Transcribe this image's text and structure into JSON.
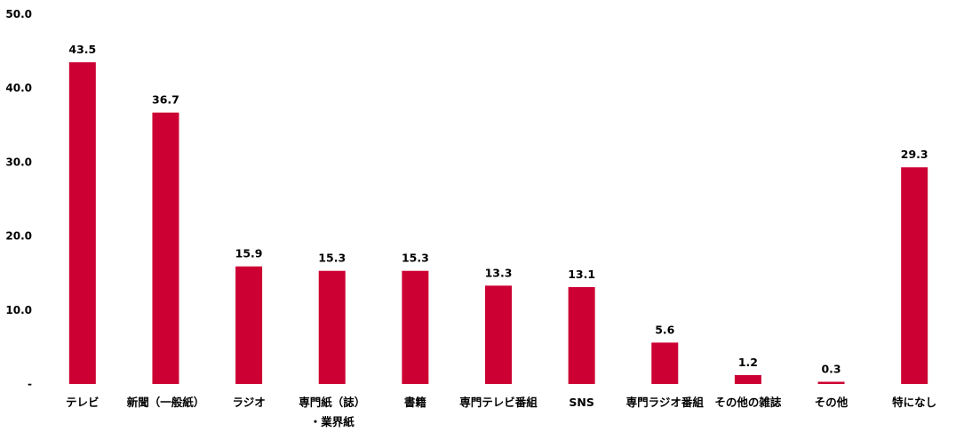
{
  "chart_data": {
    "type": "bar",
    "categories": [
      "テレビ",
      "新聞（一般紙）",
      "ラジオ",
      "専門紙（誌）・業界紙",
      "書籍",
      "専門テレビ番組",
      "SNS",
      "専門ラジオ番組",
      "その他の雑誌",
      "その他",
      "特になし"
    ],
    "category_lines": [
      [
        "テレビ"
      ],
      [
        "新聞（一般紙）"
      ],
      [
        "ラジオ"
      ],
      [
        "専門紙（誌）",
        "・業界紙"
      ],
      [
        "書籍"
      ],
      [
        "専門テレビ番組"
      ],
      [
        "SNS"
      ],
      [
        "専門ラジオ番組"
      ],
      [
        "その他の雑誌"
      ],
      [
        "その他"
      ],
      [
        "特になし"
      ]
    ],
    "values": [
      43.5,
      36.7,
      15.9,
      15.3,
      15.3,
      13.3,
      13.1,
      5.6,
      1.2,
      0.3,
      29.3
    ],
    "data_labels": [
      "43.5",
      "36.7",
      "15.9",
      "15.3",
      "15.3",
      "13.3",
      "13.1",
      "5.6",
      "1.2",
      "0.3",
      "29.3"
    ],
    "ylim": [
      0,
      50
    ],
    "yticks": [
      0,
      10,
      20,
      30,
      40,
      50
    ],
    "ytick_labels": [
      "-",
      "10.0",
      "20.0",
      "30.0",
      "40.0",
      "50.0"
    ],
    "grid": false,
    "legend": "none",
    "bar_color": "#cc0033"
  }
}
